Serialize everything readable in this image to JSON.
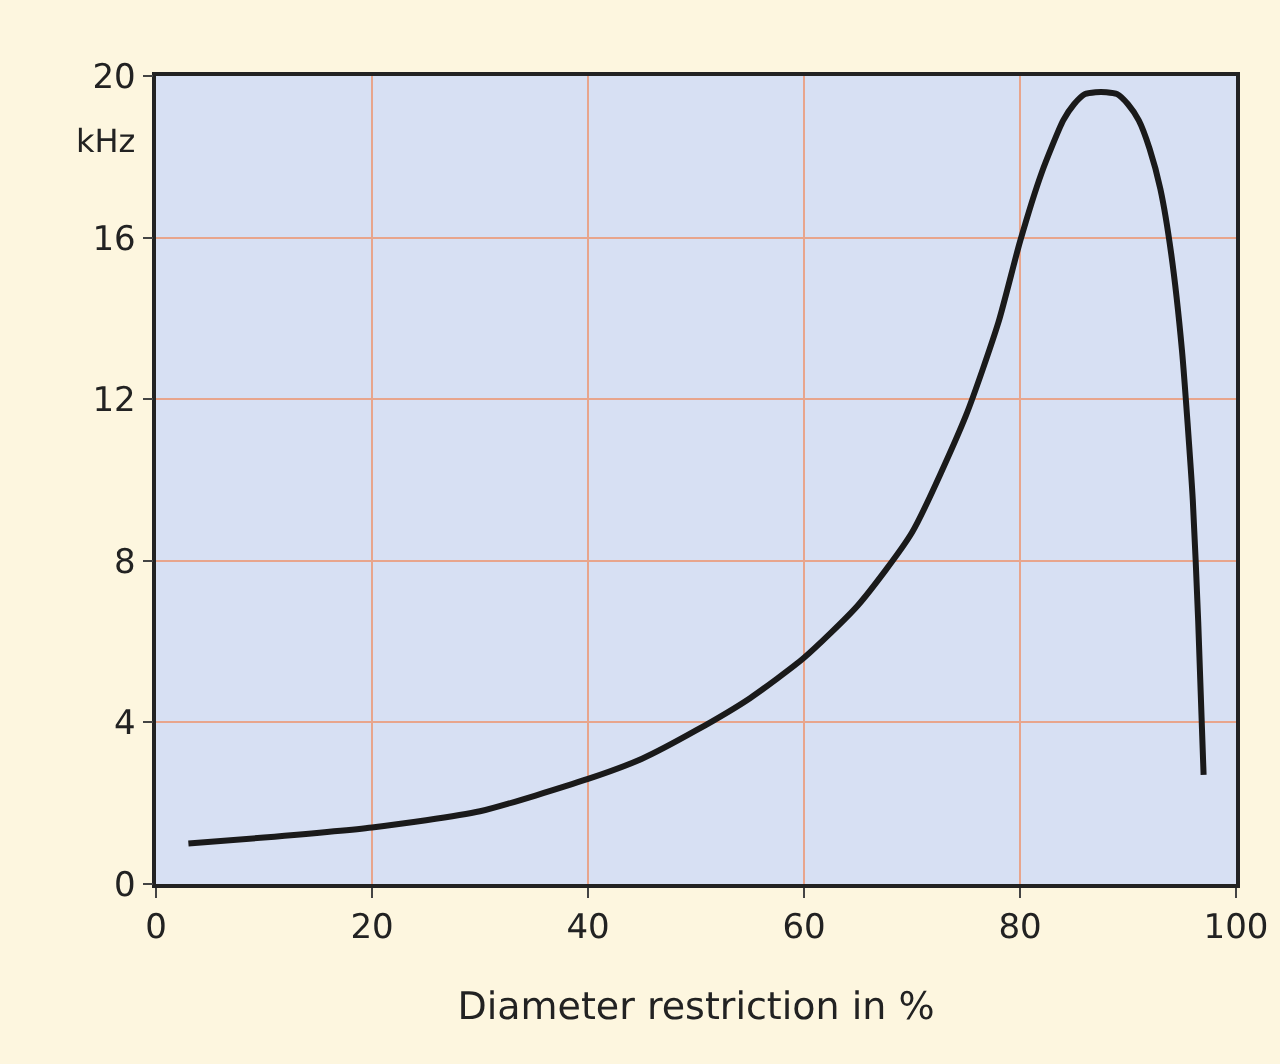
{
  "chart_data": {
    "type": "line",
    "xlabel": "Diameter restriction in %",
    "ylabel": "kHz",
    "x": [
      3,
      10,
      20,
      30,
      40,
      45,
      50,
      55,
      60,
      65,
      70,
      75,
      78,
      80,
      82,
      84,
      85,
      86,
      87,
      88,
      89,
      90,
      91,
      92,
      93,
      94,
      95,
      96,
      96.5,
      97
    ],
    "series": [
      {
        "color": "#1a1a1a",
        "values": [
          1.0,
          1.15,
          1.4,
          1.8,
          2.6,
          3.1,
          3.8,
          4.6,
          5.6,
          6.9,
          8.7,
          11.6,
          13.9,
          15.9,
          17.6,
          18.9,
          19.3,
          19.55,
          19.6,
          19.6,
          19.55,
          19.3,
          18.9,
          18.2,
          17.2,
          15.6,
          13.2,
          9.5,
          6.5,
          2.7
        ]
      }
    ],
    "xlim": [
      0,
      100
    ],
    "xticks": [
      0,
      20,
      40,
      60,
      80,
      100
    ],
    "ylim": [
      0,
      20
    ],
    "yticks": [
      0,
      4,
      8,
      12,
      16,
      20
    ],
    "grid": true,
    "marker": "none",
    "line_style": "solid"
  }
}
